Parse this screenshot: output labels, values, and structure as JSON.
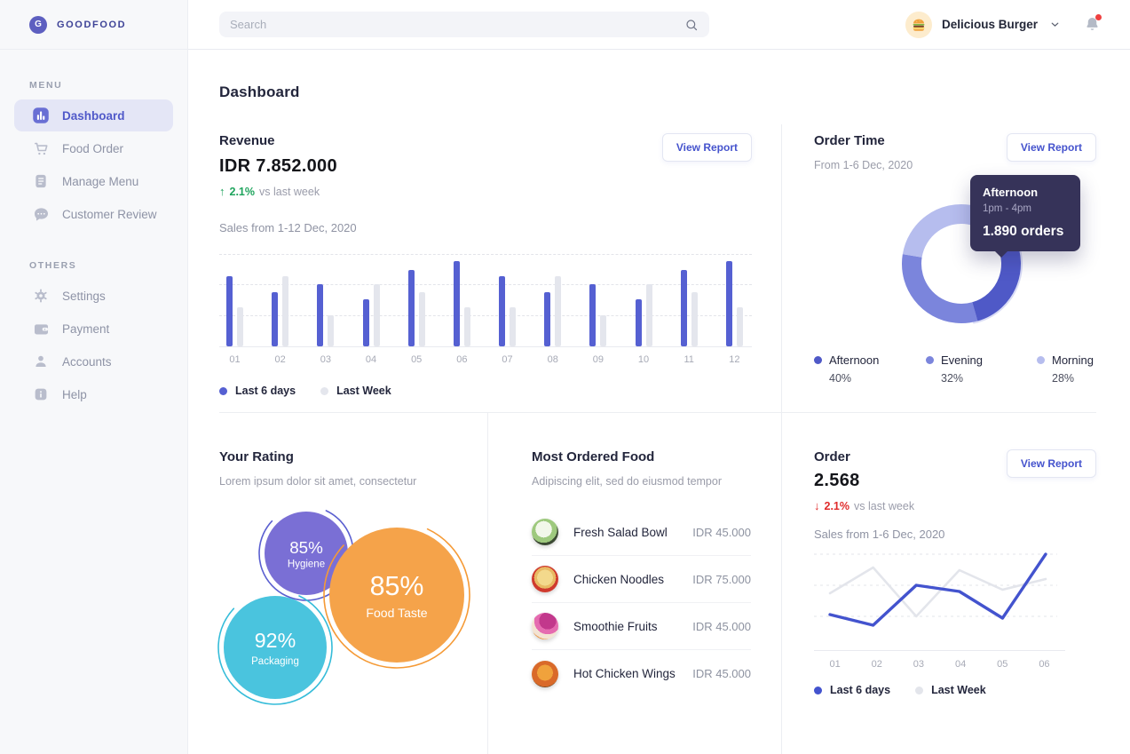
{
  "colors": {
    "primary": "#5560d2",
    "bar_gray": "#e4e6ed",
    "line_blue": "#4353ce",
    "line_gray": "#e3e5eb",
    "green": "#1fa45d",
    "red": "#e02b2b",
    "tooltip_bg": "#363359",
    "donut_highlight": "#b3baec"
  },
  "sidebar": {
    "logo_letter": "G",
    "logo_text": "GOODFOOD",
    "sections": [
      {
        "label": "MENU",
        "items": [
          {
            "label": "Dashboard",
            "icon": "dashboard-icon",
            "active": true
          },
          {
            "label": "Food Order",
            "icon": "cart-icon",
            "active": false
          },
          {
            "label": "Manage Menu",
            "icon": "document-icon",
            "active": false
          },
          {
            "label": "Customer Review",
            "icon": "chat-icon",
            "active": false
          }
        ]
      },
      {
        "label": "OTHERS",
        "items": [
          {
            "label": "Settings",
            "icon": "gear-icon",
            "active": false
          },
          {
            "label": "Payment",
            "icon": "wallet-icon",
            "active": false
          },
          {
            "label": "Accounts",
            "icon": "person-icon",
            "active": false
          },
          {
            "label": "Help",
            "icon": "info-icon",
            "active": false
          }
        ]
      }
    ]
  },
  "header": {
    "search_placeholder": "Search",
    "restaurant_name": "Delicious Burger"
  },
  "page_title": "Dashboard",
  "revenue": {
    "title": "Revenue",
    "view_report": "View Report",
    "amount": "IDR 7.852.000",
    "change": {
      "direction": "up",
      "pct": "2.1%",
      "suffix": "vs last week"
    },
    "subtitle": "Sales from 1-12 Dec, 2020",
    "chart_data": {
      "type": "bar",
      "categories": [
        "01",
        "02",
        "03",
        "04",
        "05",
        "06",
        "07",
        "08",
        "09",
        "10",
        "11",
        "12"
      ],
      "series": [
        {
          "name": "Last 6 days",
          "color": "#5560d2",
          "values": [
            76,
            59,
            67,
            51,
            83,
            92,
            76,
            59,
            67,
            51,
            83,
            92
          ]
        },
        {
          "name": "Last Week",
          "color": "#e4e6ed",
          "values": [
            42,
            76,
            34,
            67,
            59,
            42,
            42,
            76,
            34,
            67,
            59,
            42
          ]
        }
      ],
      "ylim": [
        0,
        100
      ],
      "grid": "dashed-horizontal",
      "legend_position": "bottom-left"
    }
  },
  "order_time": {
    "title": "Order Time",
    "view_report": "View Report",
    "subtitle": "From 1-6 Dec, 2020",
    "tooltip": {
      "title": "Afternoon",
      "range": "1pm - 4pm",
      "orders": "1.890 orders"
    },
    "chart_data": {
      "type": "pie",
      "start_angle_deg": -70,
      "highlight": "Afternoon",
      "slices": [
        {
          "label": "Afternoon",
          "value": 40,
          "pct_label": "40%",
          "color": "#4f59c7"
        },
        {
          "label": "Evening",
          "value": 32,
          "pct_label": "32%",
          "color": "#7b85dc"
        },
        {
          "label": "Morning",
          "value": 28,
          "pct_label": "28%",
          "color": "#b6bdee"
        }
      ]
    }
  },
  "rating": {
    "title": "Your Rating",
    "subtitle": "Lorem ipsum dolor sit amet, consectetur",
    "chart_data": {
      "type": "bubble",
      "bubbles": [
        {
          "value": "85%",
          "label": "Hygiene",
          "color": "#7a6fd5",
          "ring": "#5a5fd0"
        },
        {
          "value": "85%",
          "label": "Food Taste",
          "color": "#f5a34a",
          "ring": "#f59a36"
        },
        {
          "value": "92%",
          "label": "Packaging",
          "color": "#4ac4de",
          "ring": "#35bcd9"
        }
      ]
    }
  },
  "most_ordered": {
    "title": "Most Ordered Food",
    "subtitle": "Adipiscing elit, sed do eiusmod tempor",
    "items": [
      {
        "name": "Fresh Salad Bowl",
        "price": "IDR 45.000",
        "image": "salad"
      },
      {
        "name": "Chicken Noodles",
        "price": "IDR 75.000",
        "image": "noodles"
      },
      {
        "name": "Smoothie Fruits",
        "price": "IDR 45.000",
        "image": "smoothie"
      },
      {
        "name": "Hot Chicken Wings",
        "price": "IDR 45.000",
        "image": "wings"
      }
    ]
  },
  "order": {
    "title": "Order",
    "view_report": "View Report",
    "count": "2.568",
    "change": {
      "direction": "down",
      "pct": "2.1%",
      "suffix": "vs last week"
    },
    "subtitle": "Sales from 1-6 Dec, 2020",
    "chart_data": {
      "type": "line",
      "categories": [
        "01",
        "02",
        "03",
        "04",
        "05",
        "06"
      ],
      "series": [
        {
          "name": "Last 6 days",
          "color": "#4353ce",
          "values": [
            32,
            20,
            65,
            58,
            28,
            100
          ]
        },
        {
          "name": "Last Week",
          "color": "#e3e5eb",
          "values": [
            56,
            85,
            30,
            82,
            60,
            72
          ]
        }
      ],
      "ylim": [
        0,
        100
      ],
      "grid": "dashed-horizontal",
      "legend_position": "bottom-left"
    }
  }
}
